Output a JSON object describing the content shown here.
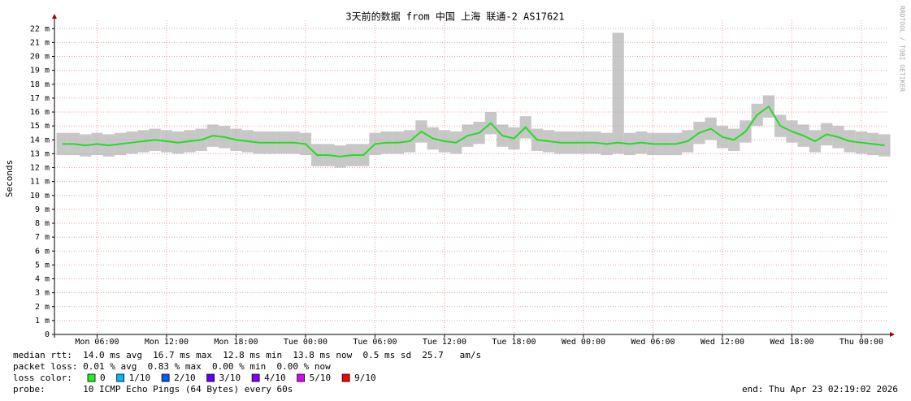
{
  "chart_data": {
    "type": "smokeping",
    "title": "3天前的数据 from 中国 上海 联通-2 AS17621",
    "y_label": "Seconds",
    "watermark": "RRDTOOL / TOBI OETIKER",
    "x": [
      3,
      4,
      5,
      6,
      7,
      8,
      9,
      10,
      11,
      12,
      13,
      14,
      15,
      16,
      17,
      18,
      19,
      20,
      21,
      22,
      23,
      24,
      25,
      26,
      27,
      28,
      29,
      30,
      31,
      32,
      33,
      34,
      35,
      36,
      37,
      38,
      39,
      40,
      41,
      42,
      43,
      44,
      45,
      46,
      47,
      48,
      49,
      50,
      51,
      52,
      53,
      54,
      55,
      56,
      57,
      58,
      59,
      60,
      61,
      62,
      63,
      64,
      65,
      66,
      67,
      68,
      69,
      70,
      71,
      72,
      73,
      74
    ],
    "values": [
      0.0137,
      0.0137,
      0.0136,
      0.0137,
      0.0136,
      0.0137,
      0.0138,
      0.0139,
      0.014,
      0.0139,
      0.0138,
      0.0139,
      0.014,
      0.0143,
      0.0142,
      0.014,
      0.0139,
      0.0138,
      0.0138,
      0.0138,
      0.0138,
      0.0137,
      0.0129,
      0.0129,
      0.0128,
      0.0129,
      0.0129,
      0.0137,
      0.0138,
      0.0138,
      0.0139,
      0.0146,
      0.0141,
      0.0139,
      0.0138,
      0.0143,
      0.0145,
      0.0152,
      0.0143,
      0.0141,
      0.0149,
      0.014,
      0.0139,
      0.0138,
      0.0138,
      0.0138,
      0.0138,
      0.0137,
      0.0138,
      0.0137,
      0.0138,
      0.0137,
      0.0137,
      0.0137,
      0.0139,
      0.0145,
      0.0148,
      0.0142,
      0.014,
      0.0146,
      0.0158,
      0.0164,
      0.015,
      0.0146,
      0.0143,
      0.0139,
      0.0144,
      0.0142,
      0.0139,
      0.0138,
      0.0137,
      0.0136
    ],
    "low": [
      0.0129,
      0.0129,
      0.0128,
      0.0129,
      0.0128,
      0.0129,
      0.013,
      0.0131,
      0.0132,
      0.0131,
      0.013,
      0.0131,
      0.0132,
      0.0135,
      0.0134,
      0.0132,
      0.0131,
      0.013,
      0.013,
      0.013,
      0.013,
      0.0129,
      0.0121,
      0.0121,
      0.012,
      0.0121,
      0.0121,
      0.0129,
      0.013,
      0.013,
      0.0131,
      0.0138,
      0.0133,
      0.0131,
      0.013,
      0.0135,
      0.0137,
      0.0144,
      0.0135,
      0.0133,
      0.0141,
      0.0132,
      0.0131,
      0.013,
      0.013,
      0.013,
      0.013,
      0.0129,
      0.013,
      0.0129,
      0.013,
      0.0129,
      0.0129,
      0.0129,
      0.0131,
      0.0137,
      0.014,
      0.0134,
      0.0132,
      0.0138,
      0.015,
      0.0156,
      0.0142,
      0.0138,
      0.0135,
      0.0131,
      0.0136,
      0.0134,
      0.0131,
      0.013,
      0.0129,
      0.0128
    ],
    "high": [
      0.0145,
      0.0145,
      0.0144,
      0.0145,
      0.0144,
      0.0145,
      0.0146,
      0.0147,
      0.0148,
      0.0147,
      0.0146,
      0.0147,
      0.0148,
      0.0151,
      0.015,
      0.0148,
      0.0147,
      0.0146,
      0.0146,
      0.0146,
      0.0146,
      0.0145,
      0.0137,
      0.0137,
      0.0136,
      0.0137,
      0.0137,
      0.0145,
      0.0146,
      0.0146,
      0.0147,
      0.0154,
      0.0149,
      0.0147,
      0.0146,
      0.0151,
      0.0153,
      0.016,
      0.0151,
      0.0149,
      0.0157,
      0.0148,
      0.0147,
      0.0146,
      0.0146,
      0.0146,
      0.0146,
      0.0145,
      0.0217,
      0.0145,
      0.0146,
      0.0145,
      0.0145,
      0.0145,
      0.0147,
      0.0153,
      0.0156,
      0.015,
      0.0148,
      0.0154,
      0.0166,
      0.0172,
      0.0158,
      0.0154,
      0.0151,
      0.0147,
      0.0152,
      0.015,
      0.0147,
      0.0146,
      0.0145,
      0.0144
    ],
    "color": "#22dd22",
    "smoke_color": "#b4b4b4",
    "xlim": [
      2.32,
      74.32
    ],
    "xticks": [
      {
        "value": 6,
        "label": "Mon 06:00"
      },
      {
        "value": 12,
        "label": "Mon 12:00"
      },
      {
        "value": 18,
        "label": "Mon 18:00"
      },
      {
        "value": 24,
        "label": "Tue 00:00"
      },
      {
        "value": 30,
        "label": "Tue 06:00"
      },
      {
        "value": 36,
        "label": "Tue 12:00"
      },
      {
        "value": 42,
        "label": "Tue 18:00"
      },
      {
        "value": 48,
        "label": "Wed 00:00"
      },
      {
        "value": 54,
        "label": "Wed 06:00"
      },
      {
        "value": 60,
        "label": "Wed 12:00"
      },
      {
        "value": 66,
        "label": "Wed 18:00"
      },
      {
        "value": 72,
        "label": "Thu 00:00"
      }
    ],
    "ylim": [
      0,
      0.0226
    ],
    "yticks": [
      0,
      {
        "value": 0.001,
        "label": "1 m"
      },
      {
        "value": 0.002,
        "label": "2 m"
      },
      {
        "value": 0.003,
        "label": "3 m"
      },
      {
        "value": 0.004,
        "label": "4 m"
      },
      {
        "value": 0.005,
        "label": "5 m"
      },
      {
        "value": 0.006,
        "label": "6 m"
      },
      {
        "value": 0.007,
        "label": "7 m"
      },
      {
        "value": 0.008,
        "label": "8 m"
      },
      {
        "value": 0.009,
        "label": "9 m"
      },
      {
        "value": 0.01,
        "label": "10 m"
      },
      {
        "value": 0.011,
        "label": "11 m"
      },
      {
        "value": 0.012,
        "label": "12 m"
      },
      {
        "value": 0.013,
        "label": "13 m"
      },
      {
        "value": 0.014,
        "label": "14 m"
      },
      {
        "value": 0.015,
        "label": "15 m"
      },
      {
        "value": 0.016,
        "label": "16 m"
      },
      {
        "value": 0.017,
        "label": "17 m"
      },
      {
        "value": 0.018,
        "label": "18 m"
      },
      {
        "value": 0.019,
        "label": "19 m"
      },
      {
        "value": 0.02,
        "label": "20 m"
      },
      {
        "value": 0.021,
        "label": "21 m"
      },
      {
        "value": 0.022,
        "label": "22 m"
      }
    ],
    "grid": true
  },
  "legend": {
    "rtt": "median rtt:  14.0 ms avg  16.7 ms max  12.8 ms min  13.8 ms now  0.5 ms sd  25.7   am/s",
    "loss": "packet loss: 0.01 % avg  0.83 % max  0.00 % min  0.00 % now",
    "loss_color_label": "loss color:",
    "loss_colors": [
      {
        "label": "0",
        "color": "#22ee22"
      },
      {
        "label": "1/10",
        "color": "#00b8ff"
      },
      {
        "label": "2/10",
        "color": "#0059ff"
      },
      {
        "label": "3/10",
        "color": "#5e00ff"
      },
      {
        "label": "4/10",
        "color": "#7e00ff"
      },
      {
        "label": "5/10",
        "color": "#dd00ff"
      },
      {
        "label": "9/10",
        "color": "#ff0000"
      }
    ],
    "probe": "probe:       10 ICMP Echo Pings (64 Bytes) every 60s",
    "end": "end: Thu Apr 23 02:19:02 2026"
  }
}
